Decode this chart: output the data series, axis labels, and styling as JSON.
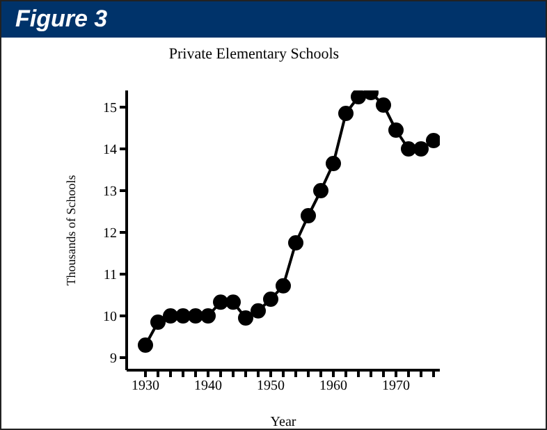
{
  "chart_data": {
    "type": "line",
    "title": "Figure 3",
    "subtitle": "Private Elementary Schools",
    "xlabel": "Year",
    "ylabel": "Thousands of Schools",
    "x": [
      1930,
      1932,
      1934,
      1936,
      1938,
      1940,
      1942,
      1944,
      1946,
      1948,
      1950,
      1952,
      1954,
      1956,
      1958,
      1960,
      1962,
      1964,
      1966,
      1968,
      1970,
      1972,
      1974,
      1976
    ],
    "series": [
      {
        "color": "#000000",
        "values": [
          9.3,
          9.85,
          10.0,
          10.0,
          10.0,
          10.0,
          10.33,
          10.33,
          9.95,
          10.12,
          10.4,
          10.72,
          11.75,
          12.4,
          13.0,
          13.65,
          14.85,
          15.25,
          15.35,
          15.05,
          14.45,
          14.0,
          14.0,
          14.2
        ]
      }
    ],
    "xlim": [
      1927,
      1977
    ],
    "xticks": [
      1930,
      {
        "value": 1932,
        "label": null
      },
      {
        "value": 1934,
        "label": null
      },
      {
        "value": 1936,
        "label": null
      },
      {
        "value": 1938,
        "label": null
      },
      1940,
      {
        "value": 1942,
        "label": null
      },
      {
        "value": 1944,
        "label": null
      },
      {
        "value": 1946,
        "label": null
      },
      {
        "value": 1948,
        "label": null
      },
      1950,
      {
        "value": 1952,
        "label": null
      },
      {
        "value": 1954,
        "label": null
      },
      {
        "value": 1956,
        "label": null
      },
      {
        "value": 1958,
        "label": null
      },
      1960,
      {
        "value": 1962,
        "label": null
      },
      {
        "value": 1964,
        "label": null
      },
      {
        "value": 1966,
        "label": null
      },
      {
        "value": 1968,
        "label": null
      },
      1970,
      {
        "value": 1972,
        "label": null
      },
      {
        "value": 1974,
        "label": null
      },
      {
        "value": 1976,
        "label": null
      }
    ],
    "ylim": [
      8.7,
      15.4
    ],
    "yticks": [
      9,
      10,
      11,
      12,
      13,
      14,
      15
    ],
    "grid": false,
    "legend": false,
    "marker": "circle",
    "line_style": "solid"
  }
}
